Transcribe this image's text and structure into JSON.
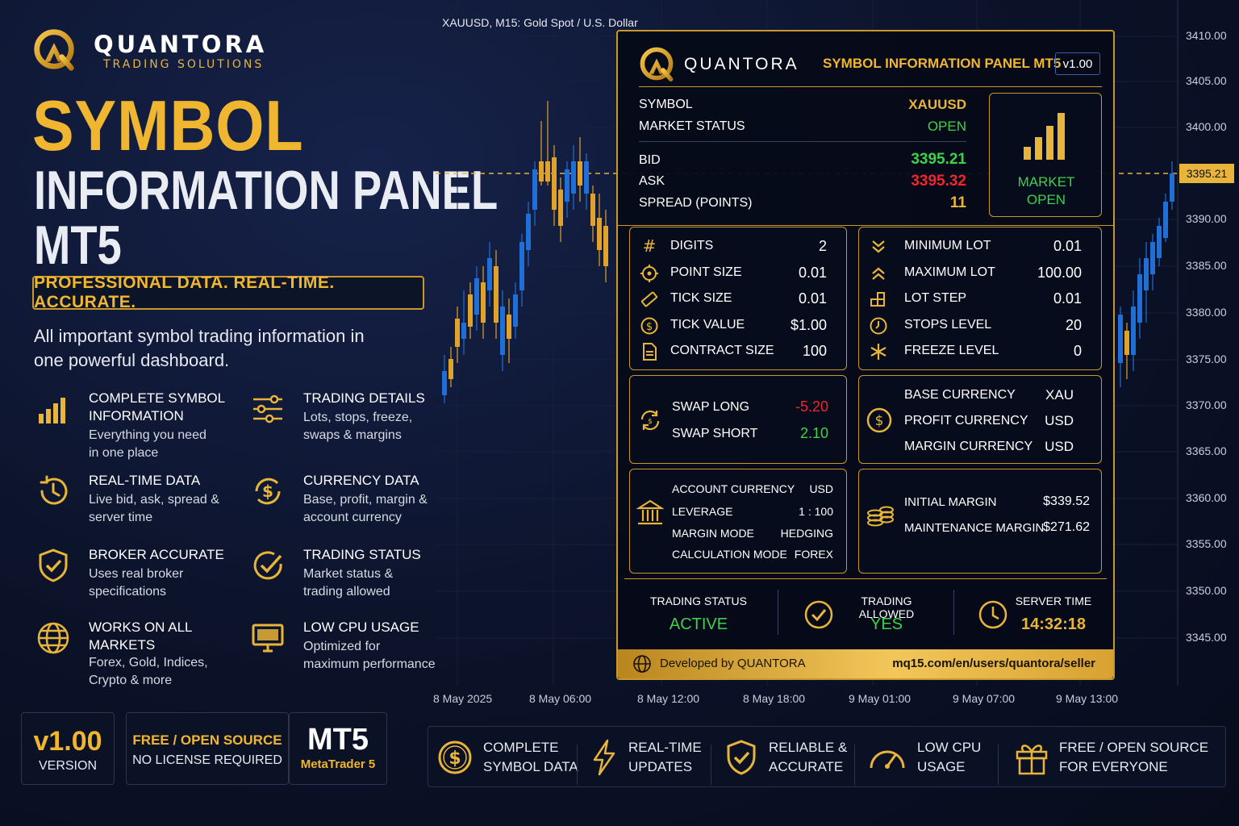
{
  "brand": {
    "name": "QUANTORA",
    "sub": "TRADING SOLUTIONS"
  },
  "headline": {
    "line1": "SYMBOL",
    "line2": "INFORMATION PANEL",
    "line3": "MT5"
  },
  "tagline": "PROFESSIONAL DATA. REAL-TIME. ACCURATE.",
  "description": {
    "line1": "All important symbol trading information in",
    "line2": "one powerful dashboard."
  },
  "features": [
    {
      "icon": "bar-chart-icon",
      "title1": "COMPLETE SYMBOL",
      "title2": "INFORMATION",
      "desc1": "Everything you need",
      "desc2": "in one place"
    },
    {
      "icon": "sliders-icon",
      "title1": "TRADING DETAILS",
      "title2": "",
      "desc1": "Lots, stops, freeze,",
      "desc2": "swaps & margins"
    },
    {
      "icon": "clock-refresh-icon",
      "title1": "REAL-TIME DATA",
      "title2": "",
      "desc1": "Live bid, ask, spread &",
      "desc2": "server time"
    },
    {
      "icon": "dollar-refresh-icon",
      "title1": "CURRENCY DATA",
      "title2": "",
      "desc1": "Base, profit, margin &",
      "desc2": "account currency"
    },
    {
      "icon": "shield-check-icon",
      "title1": "BROKER ACCURATE",
      "title2": "",
      "desc1": "Uses real broker",
      "desc2": "specifications"
    },
    {
      "icon": "check-circle-icon",
      "title1": "TRADING STATUS",
      "title2": "",
      "desc1": "Market status &",
      "desc2": "trading allowed"
    },
    {
      "icon": "globe-icon",
      "title1": "WORKS ON ALL",
      "title2": "MARKETS",
      "desc1": "Forex, Gold, Indices,",
      "desc2": "Crypto & more"
    },
    {
      "icon": "monitor-icon",
      "title1": "LOW CPU USAGE",
      "title2": "",
      "desc1": "Optimized for",
      "desc2": "maximum performance"
    }
  ],
  "badges": {
    "version": {
      "value": "v1.00",
      "label": "VERSION"
    },
    "license": {
      "title": "FREE / OPEN SOURCE",
      "sub": "NO LICENSE REQUIRED"
    },
    "platform": {
      "title": "MT5",
      "sub": "MetaTrader 5"
    }
  },
  "chart": {
    "title": "XAUUSD, M15:  Gold Spot / U.S. Dollar",
    "price_line": "3395.21",
    "y_ticks": [
      "3410.00",
      "3405.00",
      "3400.00",
      "3390.00",
      "3385.00",
      "3380.00",
      "3375.00",
      "3370.00",
      "3365.00",
      "3360.00",
      "3355.00",
      "3350.00",
      "3345.00"
    ],
    "x_ticks": [
      "8 May 2025",
      "8 May 06:00",
      "8 May 12:00",
      "8 May 18:00",
      "9 May 01:00",
      "9 May 07:00",
      "9 May 13:00"
    ]
  },
  "panel": {
    "brand": "QUANTORA",
    "title": "SYMBOL INFORMATION PANEL MT5",
    "version": "v1.00",
    "symbol_label": "SYMBOL",
    "symbol_value": "XAUUSD",
    "market_status_label": "MARKET STATUS",
    "market_status_value": "OPEN",
    "bid_label": "BID",
    "bid_value": "3395.21",
    "ask_label": "ASK",
    "ask_value": "3395.32",
    "spread_label": "SPREAD (POINTS)",
    "spread_value": "11",
    "market_badge1": "MARKET",
    "market_badge2": "OPEN",
    "left_specs": [
      {
        "icon": "hash-icon",
        "label": "DIGITS",
        "value": "2"
      },
      {
        "icon": "target-icon",
        "label": "POINT SIZE",
        "value": "0.01"
      },
      {
        "icon": "ruler-icon",
        "label": "TICK SIZE",
        "value": "0.01"
      },
      {
        "icon": "dollar-coin-icon",
        "label": "TICK VALUE",
        "value": "$1.00"
      },
      {
        "icon": "document-icon",
        "label": "CONTRACT SIZE",
        "value": "100"
      }
    ],
    "right_specs": [
      {
        "icon": "chevrons-down-icon",
        "label": "MINIMUM LOT",
        "value": "0.01"
      },
      {
        "icon": "chevrons-up-icon",
        "label": "MAXIMUM LOT",
        "value": "100.00"
      },
      {
        "icon": "blocks-icon",
        "label": "LOT STEP",
        "value": "0.01"
      },
      {
        "icon": "stop-coin-icon",
        "label": "STOPS LEVEL",
        "value": "20"
      },
      {
        "icon": "snowflake-icon",
        "label": "FREEZE LEVEL",
        "value": "0"
      }
    ],
    "swap_long_label": "SWAP LONG",
    "swap_long_value": "-5.20",
    "swap_short_label": "SWAP SHORT",
    "swap_short_value": "2.10",
    "base_currency_label": "BASE CURRENCY",
    "base_currency_value": "XAU",
    "profit_currency_label": "PROFIT CURRENCY",
    "profit_currency_value": "USD",
    "margin_currency_label": "MARGIN CURRENCY",
    "margin_currency_value": "USD",
    "account_currency_label": "ACCOUNT CURRENCY",
    "account_currency_value": "USD",
    "leverage_label": "LEVERAGE",
    "leverage_value": "1 : 100",
    "margin_mode_label": "MARGIN MODE",
    "margin_mode_value": "HEDGING",
    "calc_mode_label": "CALCULATION MODE",
    "calc_mode_value": "FOREX",
    "initial_margin_label": "INITIAL MARGIN",
    "initial_margin_value": "$339.52",
    "maint_margin_label": "MAINTENANCE MARGIN",
    "maint_margin_value": "$271.62",
    "trading_status_label": "TRADING STATUS",
    "trading_status_value": "ACTIVE",
    "trading_allowed_label": "TRADING ALLOWED",
    "trading_allowed_value": "YES",
    "server_time_label": "SERVER TIME",
    "server_time_value": "14:32:18",
    "footer_left": "Developed by QUANTORA",
    "footer_right": "mq15.com/en/users/quantora/seller"
  },
  "bottom_bar": [
    {
      "icon": "dollar-coin-icon",
      "line1": "COMPLETE",
      "line2": "SYMBOL DATA"
    },
    {
      "icon": "lightning-icon",
      "line1": "REAL-TIME",
      "line2": "UPDATES"
    },
    {
      "icon": "shield-check-icon",
      "line1": "RELIABLE &",
      "line2": "ACCURATE"
    },
    {
      "icon": "gauge-icon",
      "line1": "LOW CPU",
      "line2": "USAGE"
    },
    {
      "icon": "gift-icon",
      "line1": "FREE / OPEN SOURCE",
      "line2": "FOR EVERYONE"
    }
  ],
  "colors": {
    "gold": "#e8b43a",
    "green": "#3fd14a",
    "red": "#f0262e",
    "bull": "#1f6fd6",
    "bear": "#e0a22b"
  }
}
